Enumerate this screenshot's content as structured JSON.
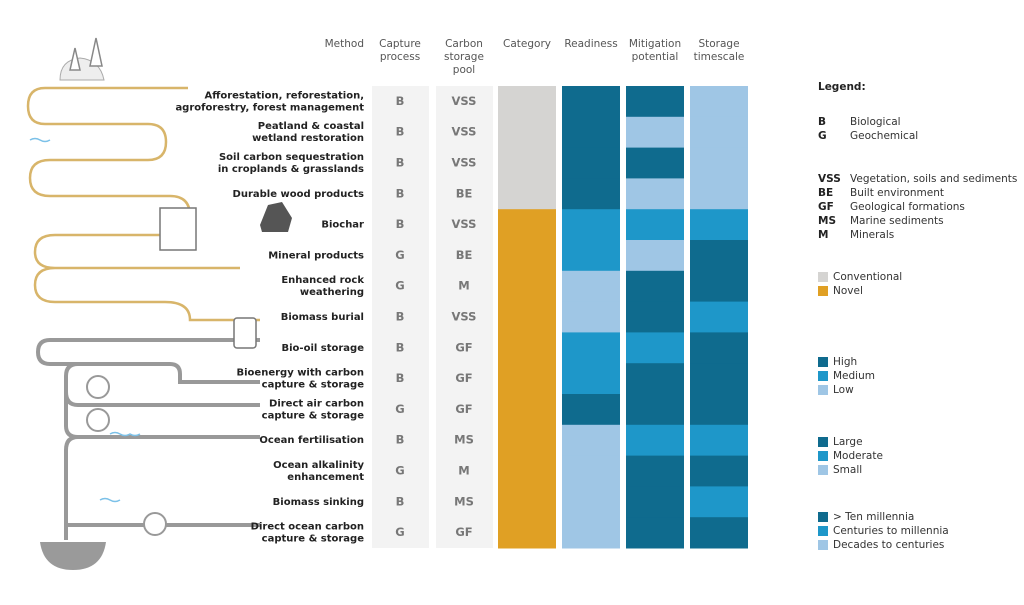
{
  "headers": [
    [
      "Method"
    ],
    [
      "Capture",
      "process"
    ],
    [
      "Carbon",
      "storage",
      "pool"
    ],
    [
      "Category"
    ],
    [
      "Readiness"
    ],
    [
      "Mitigation",
      "potential"
    ],
    [
      "Storage",
      "timescale"
    ]
  ],
  "rows": [
    {
      "method": [
        "Afforestation, reforestation,",
        "agroforestry, forest management"
      ],
      "capture": "B",
      "pool": "VSS",
      "category": "Conventional",
      "readiness": "High",
      "mitigation": "Large",
      "timescale": "Decades to centuries"
    },
    {
      "method": [
        "Peatland & coastal",
        "wetland restoration"
      ],
      "capture": "B",
      "pool": "VSS",
      "category": "Conventional",
      "readiness": "High",
      "mitigation": "Small",
      "timescale": "Decades to centuries"
    },
    {
      "method": [
        "Soil carbon sequestration",
        "in croplands & grasslands"
      ],
      "capture": "B",
      "pool": "VSS",
      "category": "Conventional",
      "readiness": "High",
      "mitigation": "Large",
      "timescale": "Decades to centuries"
    },
    {
      "method": [
        "Durable wood products"
      ],
      "capture": "B",
      "pool": "BE",
      "category": "Conventional",
      "readiness": "High",
      "mitigation": "Small",
      "timescale": "Decades to centuries"
    },
    {
      "method": [
        "Biochar"
      ],
      "capture": "B",
      "pool": "VSS",
      "category": "Novel",
      "readiness": "Medium",
      "mitigation": "Moderate",
      "timescale": "Centuries to millennia"
    },
    {
      "method": [
        "Mineral products"
      ],
      "capture": "G",
      "pool": "BE",
      "category": "Novel",
      "readiness": "Medium",
      "mitigation": "Small",
      "timescale": "> Ten millennia"
    },
    {
      "method": [
        "Enhanced rock",
        "weathering"
      ],
      "capture": "G",
      "pool": "M",
      "category": "Novel",
      "readiness": "Low",
      "mitigation": "Large",
      "timescale": "> Ten millennia"
    },
    {
      "method": [
        "Biomass burial"
      ],
      "capture": "B",
      "pool": "VSS",
      "category": "Novel",
      "readiness": "Low",
      "mitigation": "Large",
      "timescale": "Centuries to millennia"
    },
    {
      "method": [
        "Bio-oil storage"
      ],
      "capture": "B",
      "pool": "GF",
      "category": "Novel",
      "readiness": "Medium",
      "mitigation": "Moderate",
      "timescale": "> Ten millennia"
    },
    {
      "method": [
        "Bioenergy with carbon",
        "capture & storage"
      ],
      "capture": "B",
      "pool": "GF",
      "category": "Novel",
      "readiness": "Medium",
      "mitigation": "Large",
      "timescale": "> Ten millennia"
    },
    {
      "method": [
        "Direct air carbon",
        "capture & storage"
      ],
      "capture": "G",
      "pool": "GF",
      "category": "Novel",
      "readiness": "High",
      "mitigation": "Large",
      "timescale": "> Ten millennia"
    },
    {
      "method": [
        "Ocean fertilisation"
      ],
      "capture": "B",
      "pool": "MS",
      "category": "Novel",
      "readiness": "Low",
      "mitigation": "Moderate",
      "timescale": "Centuries to millennia"
    },
    {
      "method": [
        "Ocean alkalinity",
        "enhancement"
      ],
      "capture": "G",
      "pool": "M",
      "category": "Novel",
      "readiness": "Low",
      "mitigation": "Large",
      "timescale": "> Ten millennia"
    },
    {
      "method": [
        "Biomass sinking"
      ],
      "capture": "B",
      "pool": "MS",
      "category": "Novel",
      "readiness": "Low",
      "mitigation": "Large",
      "timescale": "Centuries to millennia"
    },
    {
      "method": [
        "Direct ocean carbon",
        "capture & storage"
      ],
      "capture": "G",
      "pool": "GF",
      "category": "Novel",
      "readiness": "Low",
      "mitigation": "Large",
      "timescale": "> Ten millennia"
    }
  ],
  "legend": {
    "title": "Legend:",
    "capture": [
      {
        "code": "B",
        "label": "Biological"
      },
      {
        "code": "G",
        "label": "Geochemical"
      }
    ],
    "pool": [
      {
        "code": "VSS",
        "label": "Vegetation, soils and sediments"
      },
      {
        "code": "BE",
        "label": "Built environment"
      },
      {
        "code": "GF",
        "label": "Geological formations"
      },
      {
        "code": "MS",
        "label": "Marine sediments"
      },
      {
        "code": "M",
        "label": "Minerals"
      }
    ],
    "category": [
      {
        "label": "Conventional",
        "color": "#d5d4d2"
      },
      {
        "label": "Novel",
        "color": "#e0a024"
      }
    ],
    "readiness": [
      {
        "label": "High",
        "color": "#0f6b8e"
      },
      {
        "label": "Medium",
        "color": "#1e97c9"
      },
      {
        "label": "Low",
        "color": "#9fc6e5"
      }
    ],
    "mitigation": [
      {
        "label": "Large",
        "color": "#0f6b8e"
      },
      {
        "label": "Moderate",
        "color": "#1e97c9"
      },
      {
        "label": "Small",
        "color": "#9fc6e5"
      }
    ],
    "timescale": [
      {
        "label": "> Ten millennia",
        "color": "#0f6b8e"
      },
      {
        "label": "Centuries to millennia",
        "color": "#1e97c9"
      },
      {
        "label": "Decades to centuries",
        "color": "#9fc6e5"
      }
    ]
  }
}
